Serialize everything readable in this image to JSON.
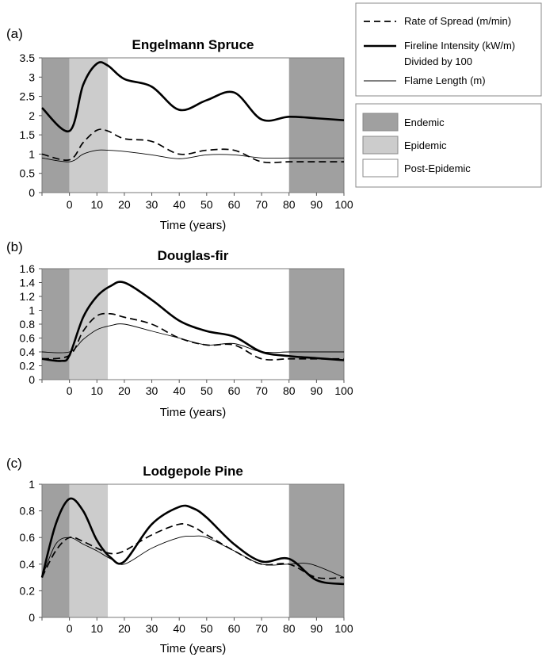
{
  "legend": {
    "lines": [
      {
        "key": "ros",
        "label_lines": [
          "Rate of Spread (m/min)"
        ],
        "style": "dashed"
      },
      {
        "key": "fi",
        "label_lines": [
          "Fireline Intensity (kW/m)",
          "Divided by 100"
        ],
        "style": "thick"
      },
      {
        "key": "fl",
        "label_lines": [
          "Flame Length (m)"
        ],
        "style": "thin"
      }
    ],
    "phases": [
      {
        "key": "endemic",
        "label": "Endemic",
        "color": "#a0a0a0"
      },
      {
        "key": "epidemic",
        "label": "Epidemic",
        "color": "#cccccc"
      },
      {
        "key": "post",
        "label": "Post-Epidemic",
        "color": "#ffffff"
      }
    ]
  },
  "chart_data": [
    {
      "type": "line",
      "tag": "(a)",
      "title": "Engelmann Spruce",
      "xlabel": "Time (years)",
      "ylabel": "",
      "xlim": [
        -10,
        100
      ],
      "ylim": [
        0,
        3.5
      ],
      "xticks": [
        0,
        10,
        20,
        30,
        40,
        50,
        60,
        70,
        80,
        90,
        100
      ],
      "yticks": [
        "0",
        "0.5",
        "1",
        "1.5",
        "2",
        "2.5",
        "3",
        "3.5"
      ],
      "yvalues": [
        0,
        0.5,
        1,
        1.5,
        2,
        2.5,
        3,
        3.5
      ],
      "phases": [
        {
          "phase": "endemic",
          "x": [
            -10,
            0
          ]
        },
        {
          "phase": "epidemic",
          "x": [
            0,
            14
          ]
        },
        {
          "phase": "post",
          "x": [
            14,
            80
          ]
        },
        {
          "phase": "endemic",
          "x": [
            80,
            100
          ]
        }
      ],
      "series": [
        {
          "key": "fi",
          "x": [
            -10,
            0,
            5,
            10,
            14,
            20,
            30,
            40,
            50,
            60,
            70,
            80,
            90,
            100
          ],
          "y": [
            2.2,
            1.6,
            2.8,
            3.35,
            3.3,
            2.95,
            2.75,
            2.15,
            2.4,
            2.6,
            1.9,
            1.97,
            1.93,
            1.88
          ]
        },
        {
          "key": "ros",
          "x": [
            -10,
            0,
            5,
            10,
            14,
            20,
            30,
            40,
            50,
            60,
            70,
            80,
            90,
            100
          ],
          "y": [
            1.0,
            0.85,
            1.3,
            1.62,
            1.6,
            1.4,
            1.33,
            1.0,
            1.1,
            1.1,
            0.8,
            0.8,
            0.8,
            0.8
          ]
        },
        {
          "key": "fl",
          "x": [
            -10,
            0,
            5,
            10,
            14,
            20,
            30,
            40,
            50,
            60,
            70,
            80,
            90,
            100
          ],
          "y": [
            0.9,
            0.8,
            1.0,
            1.1,
            1.1,
            1.07,
            0.98,
            0.88,
            0.98,
            0.98,
            0.9,
            0.9,
            0.9,
            0.9
          ]
        }
      ]
    },
    {
      "type": "line",
      "tag": "(b)",
      "title": "Douglas-fir",
      "xlabel": "Time (years)",
      "ylabel": "",
      "xlim": [
        -10,
        100
      ],
      "ylim": [
        0,
        1.6
      ],
      "xticks": [
        0,
        10,
        20,
        30,
        40,
        50,
        60,
        70,
        80,
        90,
        100
      ],
      "yticks": [
        "0",
        "0.2",
        "0.4",
        "0.6",
        "0.8",
        "1",
        "1.2",
        "1.4",
        "1.6"
      ],
      "yvalues": [
        0,
        0.2,
        0.4,
        0.6,
        0.8,
        1,
        1.2,
        1.4,
        1.6
      ],
      "phases": [
        {
          "phase": "endemic",
          "x": [
            -10,
            0
          ]
        },
        {
          "phase": "epidemic",
          "x": [
            0,
            14
          ]
        },
        {
          "phase": "post",
          "x": [
            14,
            80
          ]
        },
        {
          "phase": "endemic",
          "x": [
            80,
            100
          ]
        }
      ],
      "series": [
        {
          "key": "fi",
          "x": [
            -10,
            -3,
            0,
            5,
            10,
            15,
            20,
            30,
            40,
            50,
            60,
            70,
            80,
            90,
            100
          ],
          "y": [
            0.3,
            0.27,
            0.35,
            0.9,
            1.2,
            1.35,
            1.4,
            1.15,
            0.85,
            0.7,
            0.62,
            0.4,
            0.34,
            0.31,
            0.28
          ]
        },
        {
          "key": "ros",
          "x": [
            -10,
            0,
            5,
            10,
            15,
            20,
            30,
            40,
            50,
            60,
            70,
            80,
            90,
            100
          ],
          "y": [
            0.3,
            0.35,
            0.7,
            0.92,
            0.95,
            0.9,
            0.8,
            0.6,
            0.5,
            0.5,
            0.3,
            0.3,
            0.3,
            0.3
          ]
        },
        {
          "key": "fl",
          "x": [
            -10,
            0,
            5,
            10,
            15,
            20,
            30,
            40,
            50,
            60,
            70,
            80,
            90,
            100
          ],
          "y": [
            0.4,
            0.4,
            0.58,
            0.72,
            0.78,
            0.8,
            0.7,
            0.6,
            0.5,
            0.52,
            0.4,
            0.4,
            0.4,
            0.4
          ]
        }
      ]
    },
    {
      "type": "line",
      "tag": "(c)",
      "title": "Lodgepole Pine",
      "xlabel": "Time (years)",
      "ylabel": "",
      "xlim": [
        -10,
        100
      ],
      "ylim": [
        0,
        1
      ],
      "xticks": [
        0,
        10,
        20,
        30,
        40,
        50,
        60,
        70,
        80,
        90,
        100
      ],
      "yticks": [
        "0",
        "0.2",
        "0.4",
        "0.6",
        "0.8",
        "1"
      ],
      "yvalues": [
        0,
        0.2,
        0.4,
        0.6,
        0.8,
        1
      ],
      "phases": [
        {
          "phase": "endemic",
          "x": [
            -10,
            0
          ]
        },
        {
          "phase": "epidemic",
          "x": [
            0,
            14
          ]
        },
        {
          "phase": "post",
          "x": [
            14,
            80
          ]
        },
        {
          "phase": "endemic",
          "x": [
            80,
            100
          ]
        }
      ],
      "series": [
        {
          "key": "fi",
          "x": [
            -10,
            -5,
            0,
            5,
            10,
            15,
            20,
            30,
            40,
            45,
            50,
            60,
            70,
            80,
            90,
            100
          ],
          "y": [
            0.3,
            0.7,
            0.89,
            0.8,
            0.58,
            0.45,
            0.42,
            0.7,
            0.83,
            0.82,
            0.75,
            0.55,
            0.42,
            0.44,
            0.28,
            0.25
          ]
        },
        {
          "key": "ros",
          "x": [
            -10,
            -5,
            0,
            5,
            10,
            15,
            20,
            30,
            40,
            45,
            50,
            60,
            70,
            80,
            90,
            100
          ],
          "y": [
            0.3,
            0.5,
            0.6,
            0.57,
            0.52,
            0.48,
            0.5,
            0.62,
            0.7,
            0.68,
            0.62,
            0.5,
            0.4,
            0.4,
            0.3,
            0.3
          ]
        },
        {
          "key": "fl",
          "x": [
            -10,
            -5,
            0,
            5,
            10,
            15,
            20,
            30,
            40,
            45,
            50,
            60,
            70,
            80,
            88,
            100
          ],
          "y": [
            0.3,
            0.55,
            0.6,
            0.55,
            0.5,
            0.44,
            0.4,
            0.52,
            0.6,
            0.61,
            0.6,
            0.5,
            0.4,
            0.4,
            0.4,
            0.3
          ]
        }
      ]
    }
  ]
}
